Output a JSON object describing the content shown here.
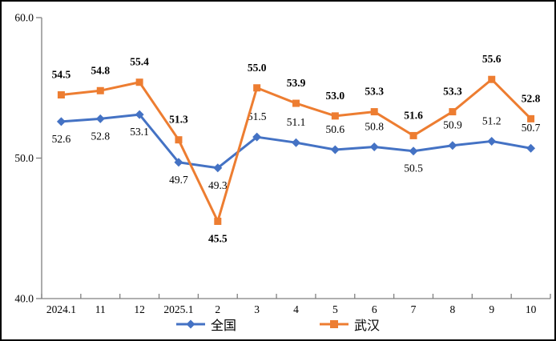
{
  "chart_data": {
    "type": "line",
    "title": "",
    "categories": [
      "2024.1",
      "11",
      "12",
      "2025.1",
      "2",
      "3",
      "4",
      "5",
      "6",
      "7",
      "8",
      "9",
      "10"
    ],
    "series": [
      {
        "name": "全国",
        "color": "#4472C4",
        "marker": "diamond",
        "bold_labels": false,
        "values": [
          52.6,
          52.8,
          53.1,
          49.7,
          49.3,
          51.5,
          51.1,
          50.6,
          50.8,
          50.5,
          50.9,
          51.2,
          50.7
        ],
        "label_side": [
          "below",
          "below",
          "below",
          "below",
          "below",
          "above",
          "above",
          "above",
          "above",
          "below",
          "above",
          "above",
          "above"
        ]
      },
      {
        "name": "武汉",
        "color": "#ED7D31",
        "marker": "square",
        "bold_labels": true,
        "values": [
          54.5,
          54.8,
          55.4,
          51.3,
          45.5,
          55.0,
          53.9,
          53.0,
          53.3,
          51.6,
          53.3,
          55.6,
          52.8
        ],
        "label_side": [
          "above",
          "above",
          "above",
          "above",
          "below",
          "above",
          "above",
          "above",
          "above",
          "above",
          "above",
          "above",
          "above"
        ]
      }
    ],
    "y_axis": {
      "tick_labels": [
        "60.0",
        "50.0",
        "40.0"
      ],
      "tick_values": [
        60,
        50,
        40
      ]
    },
    "ylim": [
      40,
      60
    ],
    "grid": false,
    "legend_position": "bottom-center",
    "label_decimals": 1
  },
  "colors": {
    "axis_line": "#808080",
    "label_text": "#000000",
    "border": "#000000",
    "background": "#ffffff"
  }
}
